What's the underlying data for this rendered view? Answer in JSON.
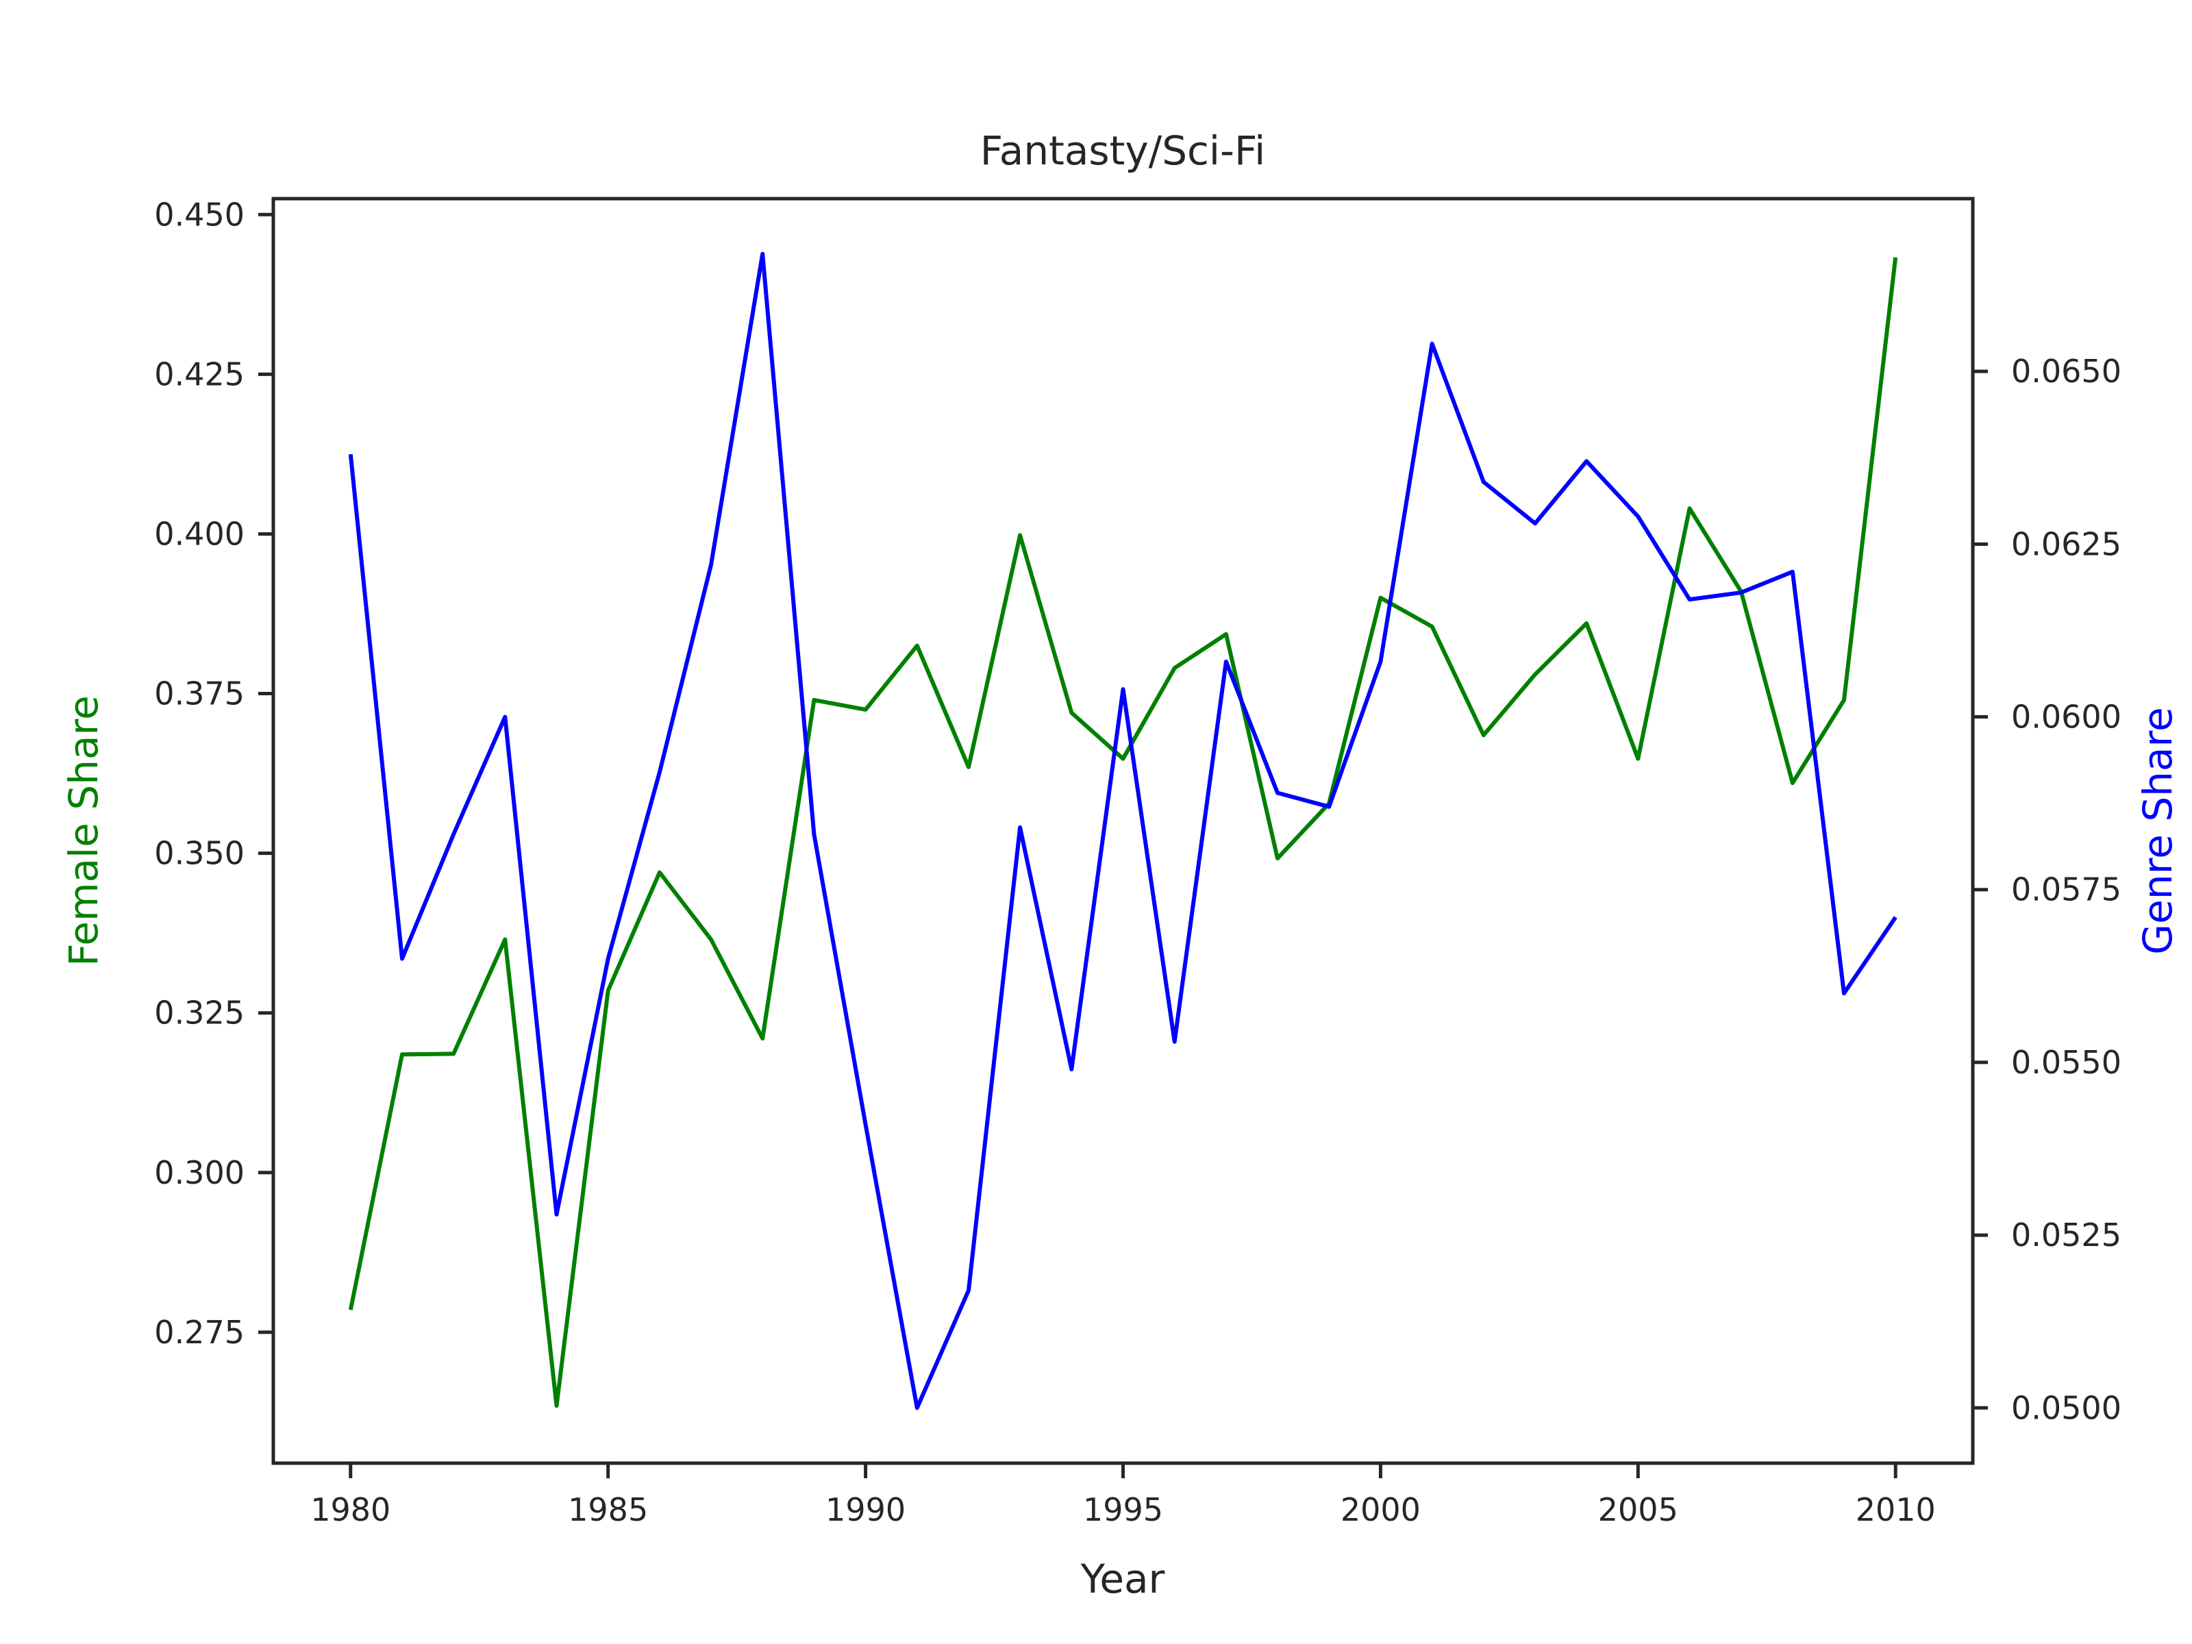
{
  "chart_data": {
    "type": "line",
    "title": "Fantasty/Sci-Fi",
    "xlabel": "Year",
    "ylabel_left": "Female Share",
    "ylabel_right": "Genre Share",
    "xlim": [
      1978.5,
      2011.5
    ],
    "ylim_left": [
      0.2545,
      0.4525
    ],
    "ylim_right": [
      0.0492,
      0.0675
    ],
    "x_ticks": [
      1980,
      1985,
      1990,
      1995,
      2000,
      2005,
      2010
    ],
    "y_ticks_left": [
      "0.275",
      "0.300",
      "0.325",
      "0.350",
      "0.375",
      "0.400",
      "0.425",
      "0.450"
    ],
    "y_ticks_right": [
      "0.0500",
      "0.0525",
      "0.0550",
      "0.0575",
      "0.0600",
      "0.0625",
      "0.0650"
    ],
    "grid": false,
    "x": [
      1980,
      1981,
      1982,
      1983,
      1984,
      1985,
      1986,
      1987,
      1988,
      1989,
      1990,
      1991,
      1992,
      1993,
      1994,
      1995,
      1996,
      1997,
      1998,
      1999,
      2000,
      2001,
      2002,
      2003,
      2004,
      2005,
      2006,
      2007,
      2008,
      2009,
      2010
    ],
    "series": [
      {
        "name": "Female Share",
        "axis": "left",
        "color": "#008000",
        "values": [
          0.2785,
          0.3185,
          0.3186,
          0.3365,
          0.2635,
          0.3285,
          0.347,
          0.3365,
          0.321,
          0.374,
          0.3725,
          0.3825,
          0.3635,
          0.3998,
          0.372,
          0.3648,
          0.379,
          0.3843,
          0.3492,
          0.3578,
          0.39,
          0.3855,
          0.3685,
          0.378,
          0.386,
          0.3648,
          0.404,
          0.391,
          0.361,
          0.374,
          0.4433
        ]
      },
      {
        "name": "Genre Share",
        "axis": "right",
        "color": "#0000ff",
        "values": [
          0.0638,
          0.0565,
          0.0583,
          0.06,
          0.0528,
          0.0565,
          0.0592,
          0.0622,
          0.0667,
          0.0583,
          0.0541,
          0.05,
          0.0517,
          0.0584,
          0.0549,
          0.0604,
          0.0553,
          0.0608,
          0.0589,
          0.0587,
          0.0608,
          0.0654,
          0.0634,
          0.0628,
          0.0637,
          0.0629,
          0.0617,
          0.0618,
          0.0621,
          0.056,
          0.0571
        ]
      }
    ]
  }
}
